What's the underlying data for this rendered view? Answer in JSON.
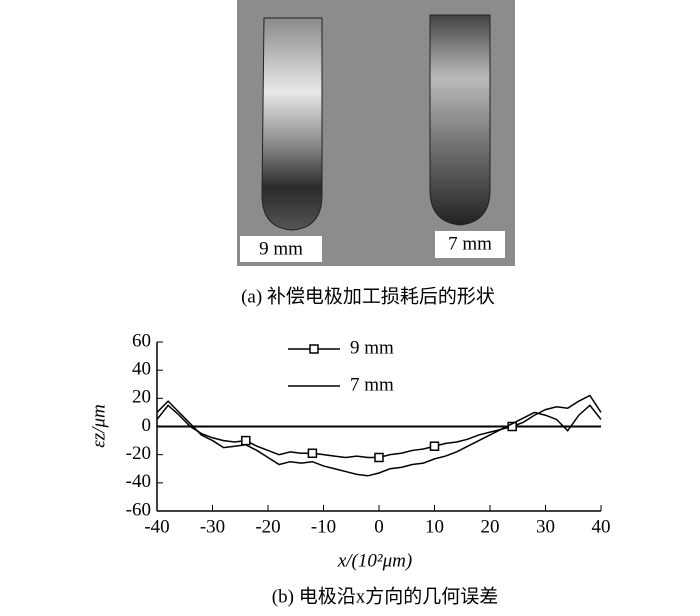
{
  "photo": {
    "labels": [
      "9 mm",
      "7 mm"
    ],
    "caption": "(a) 补偿电极加工损耗后的形状"
  },
  "chart_data": {
    "type": "line",
    "caption": "(b) 电极沿x方向的几何误差",
    "xlabel": "x/(10²μm)",
    "ylabel": "εz/μm",
    "x": [
      -40,
      -38,
      -36,
      -34,
      -32,
      -30,
      -28,
      -26,
      -24,
      -22,
      -20,
      -18,
      -16,
      -14,
      -12,
      -10,
      -8,
      -6,
      -4,
      -2,
      0,
      2,
      4,
      6,
      8,
      10,
      12,
      14,
      16,
      18,
      20,
      22,
      24,
      26,
      28,
      30,
      32,
      34,
      36,
      38,
      40
    ],
    "series": [
      {
        "name": "9 mm",
        "color": "#000000",
        "marker": "square",
        "values": [
          5,
          15,
          8,
          0,
          -5,
          -8,
          -10,
          -11,
          -10,
          -14,
          -17,
          -20,
          -18,
          -19,
          -19,
          -20,
          -21,
          -22,
          -21,
          -22,
          -22,
          -20,
          -19,
          -17,
          -16,
          -14,
          -12,
          -11,
          -9,
          -6,
          -4,
          -2,
          0,
          3,
          8,
          12,
          14,
          13,
          18,
          22,
          10
        ]
      },
      {
        "name": "7 mm",
        "color": "#000000",
        "values": [
          10,
          18,
          10,
          2,
          -6,
          -10,
          -15,
          -14,
          -13,
          -17,
          -22,
          -27,
          -25,
          -26,
          -25,
          -28,
          -30,
          -32,
          -34,
          -35,
          -33,
          -30,
          -29,
          -27,
          -26,
          -23,
          -21,
          -18,
          -14,
          -10,
          -6,
          -2,
          2,
          6,
          10,
          8,
          5,
          -3,
          8,
          15,
          5
        ]
      }
    ],
    "xlim": [
      -40,
      40
    ],
    "xticks": [
      -40,
      -30,
      -20,
      -10,
      0,
      10,
      20,
      30,
      40
    ],
    "ylim": [
      -60,
      60
    ],
    "yticks": [
      -60,
      -40,
      -20,
      0,
      20,
      40,
      60
    ]
  }
}
